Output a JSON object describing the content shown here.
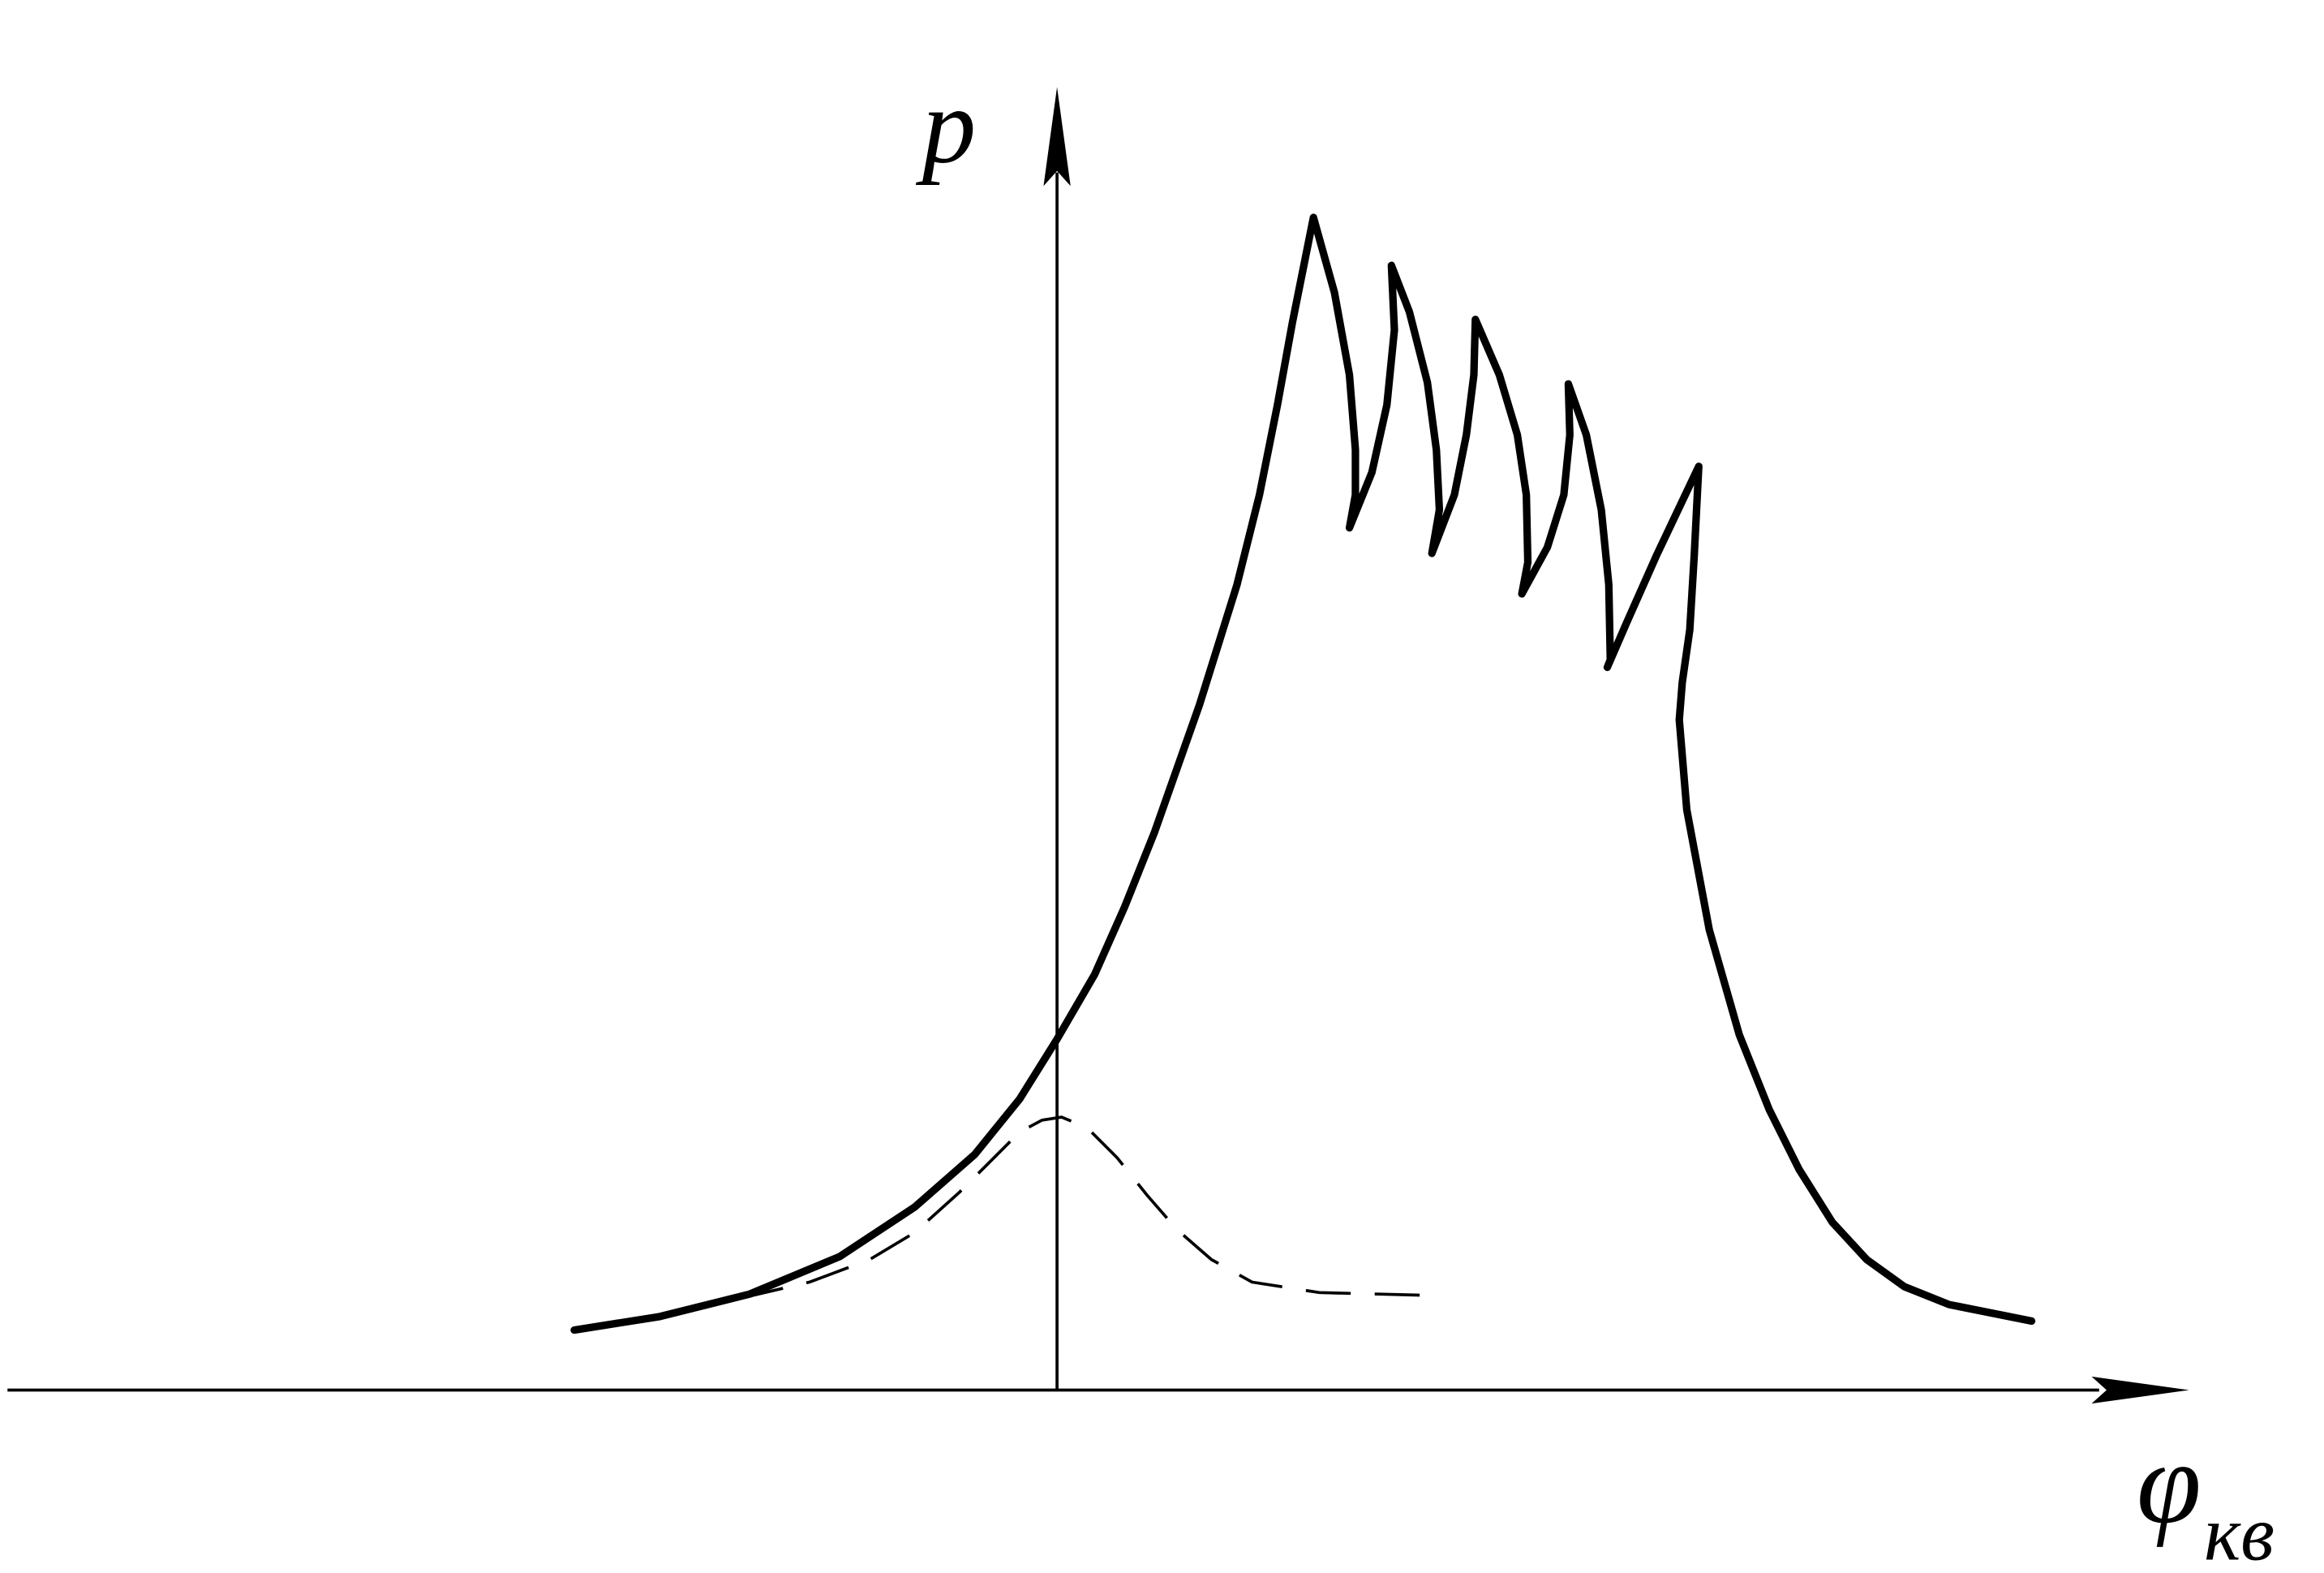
{
  "axes": {
    "y_label": "p",
    "x_label": "φ",
    "x_label_sub": "кв"
  }
}
